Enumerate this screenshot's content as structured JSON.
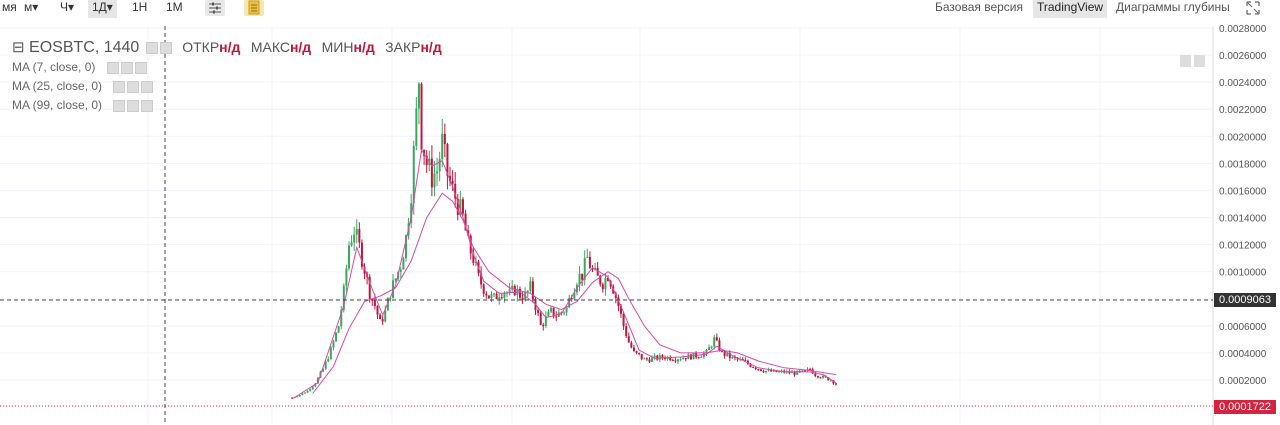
{
  "toolbar": {
    "items": [
      {
        "label": "мя"
      },
      {
        "label": "м▾"
      },
      {
        "label": "Ч▾"
      },
      {
        "label": "1Д▾"
      },
      {
        "label": "1Н"
      },
      {
        "label": "1М"
      }
    ],
    "settings_icon": "sliders-icon",
    "indicator_icon": "notes-icon",
    "right_items": [
      {
        "label": "Базовая версия"
      },
      {
        "label": "TradingView"
      },
      {
        "label": "Диаграммы глубины"
      }
    ],
    "fullscreen_icon": "expand-icon"
  },
  "legend": {
    "symbol": "EOSBTC, 1440",
    "open_label": "ОТКР",
    "high_label": "МАКС",
    "low_label": "МИН",
    "close_label": "ЗАКР",
    "na": "н/д",
    "ma": [
      {
        "label": "MA (7, close, 0)"
      },
      {
        "label": "MA (25, close, 0)"
      },
      {
        "label": "MA (99, close, 0)"
      }
    ]
  },
  "colors": {
    "up": "#3aa75d",
    "down": "#c0163b",
    "ma": "#d64ba6",
    "crosshair": "#444444",
    "tag_dark": "#333333",
    "tag_red": "#d4233f"
  },
  "chart_data": {
    "type": "candlestick",
    "y_ticks": [
      "0.0028000",
      "0.0026000",
      "0.0024000",
      "0.0022000",
      "0.0020000",
      "0.0018000",
      "0.0016000",
      "0.0014000",
      "0.0012000",
      "0.0010000",
      "0.0008000",
      "0.0006000",
      "0.0004000",
      "0.0002000"
    ],
    "ylim": [
      0.00014,
      0.0028
    ],
    "crosshair_price": "0.0009063",
    "last_price": "0.0001722",
    "close_path": [
      [
        0,
        7e-05
      ],
      [
        3,
        9e-05
      ],
      [
        6,
        0.00012
      ],
      [
        9,
        0.00018
      ],
      [
        12,
        0.00028
      ],
      [
        15,
        0.00042
      ],
      [
        18,
        0.0006
      ],
      [
        20,
        0.00085
      ],
      [
        22,
        0.0012
      ],
      [
        24,
        0.00131
      ],
      [
        26,
        0.00118
      ],
      [
        28,
        0.00102
      ],
      [
        30,
        0.00085
      ],
      [
        32,
        0.00075
      ],
      [
        34,
        0.00062
      ],
      [
        36,
        0.0007
      ],
      [
        38,
        0.00085
      ],
      [
        40,
        0.00095
      ],
      [
        42,
        0.00105
      ],
      [
        44,
        0.00125
      ],
      [
        46,
        0.0016
      ],
      [
        48,
        0.00215
      ],
      [
        49,
        0.00243
      ],
      [
        50,
        0.002
      ],
      [
        52,
        0.0018
      ],
      [
        54,
        0.0017
      ],
      [
        56,
        0.00175
      ],
      [
        58,
        0.00195
      ],
      [
        60,
        0.00172
      ],
      [
        62,
        0.0016
      ],
      [
        64,
        0.0015
      ],
      [
        66,
        0.0014
      ],
      [
        68,
        0.0012
      ],
      [
        70,
        0.0011
      ],
      [
        72,
        0.00095
      ],
      [
        74,
        0.00088
      ],
      [
        76,
        0.00082
      ],
      [
        78,
        0.0008
      ],
      [
        80,
        0.00085
      ],
      [
        82,
        0.00086
      ],
      [
        84,
        0.00083
      ],
      [
        86,
        0.00087
      ],
      [
        88,
        0.00083
      ],
      [
        90,
        0.00082
      ],
      [
        92,
        0.00088
      ],
      [
        94,
        0.00075
      ],
      [
        96,
        0.0006
      ],
      [
        98,
        0.00065
      ],
      [
        100,
        0.0007
      ],
      [
        102,
        0.00068
      ],
      [
        104,
        0.0007
      ],
      [
        106,
        0.00073
      ],
      [
        108,
        0.00085
      ],
      [
        110,
        0.00095
      ],
      [
        112,
        0.00098
      ],
      [
        114,
        0.0011
      ],
      [
        116,
        0.001
      ],
      [
        118,
        0.00095
      ],
      [
        120,
        0.00092
      ],
      [
        122,
        0.00098
      ],
      [
        124,
        0.00088
      ],
      [
        126,
        0.00075
      ],
      [
        128,
        0.0006
      ],
      [
        130,
        0.00048
      ],
      [
        132,
        0.0004
      ],
      [
        134,
        0.00038
      ],
      [
        136,
        0.00035
      ],
      [
        140,
        0.00036
      ],
      [
        144,
        0.00037
      ],
      [
        148,
        0.00036
      ],
      [
        152,
        0.00037
      ],
      [
        156,
        0.00038
      ],
      [
        160,
        0.0004
      ],
      [
        163,
        0.0005
      ],
      [
        166,
        0.0004
      ],
      [
        170,
        0.00036
      ],
      [
        174,
        0.00034
      ],
      [
        178,
        0.0003
      ],
      [
        182,
        0.00027
      ],
      [
        186,
        0.00026
      ],
      [
        190,
        0.00026
      ],
      [
        194,
        0.00025
      ],
      [
        198,
        0.00026
      ],
      [
        200,
        0.00028
      ],
      [
        202,
        0.00024
      ],
      [
        205,
        0.00022
      ],
      [
        208,
        0.0002
      ],
      [
        210,
        0.00017
      ]
    ],
    "ma7_path": [
      [
        0,
        6e-05
      ],
      [
        10,
        0.00018
      ],
      [
        20,
        0.00075
      ],
      [
        25,
        0.00118
      ],
      [
        30,
        0.00092
      ],
      [
        35,
        0.00068
      ],
      [
        40,
        0.0009
      ],
      [
        46,
        0.0014
      ],
      [
        50,
        0.0019
      ],
      [
        54,
        0.00178
      ],
      [
        58,
        0.00182
      ],
      [
        62,
        0.00163
      ],
      [
        66,
        0.0014
      ],
      [
        70,
        0.00113
      ],
      [
        74,
        0.00093
      ],
      [
        80,
        0.00084
      ],
      [
        88,
        0.00085
      ],
      [
        94,
        0.00076
      ],
      [
        98,
        0.00066
      ],
      [
        104,
        0.00069
      ],
      [
        110,
        0.00088
      ],
      [
        116,
        0.00103
      ],
      [
        122,
        0.00096
      ],
      [
        128,
        0.0007
      ],
      [
        134,
        0.00042
      ],
      [
        140,
        0.00036
      ],
      [
        150,
        0.00037
      ],
      [
        160,
        0.00039
      ],
      [
        164,
        0.00045
      ],
      [
        170,
        0.00038
      ],
      [
        180,
        0.00029
      ],
      [
        190,
        0.00026
      ],
      [
        200,
        0.00026
      ],
      [
        205,
        0.00024
      ],
      [
        210,
        0.00018
      ]
    ],
    "ma25_path": [
      [
        8,
        0.0001
      ],
      [
        16,
        0.0003
      ],
      [
        22,
        0.00058
      ],
      [
        28,
        0.00078
      ],
      [
        34,
        0.00082
      ],
      [
        40,
        0.00088
      ],
      [
        46,
        0.00108
      ],
      [
        52,
        0.0014
      ],
      [
        58,
        0.00158
      ],
      [
        62,
        0.00152
      ],
      [
        66,
        0.00138
      ],
      [
        70,
        0.00118
      ],
      [
        76,
        0.001
      ],
      [
        84,
        0.00088
      ],
      [
        92,
        0.00084
      ],
      [
        98,
        0.00076
      ],
      [
        104,
        0.00072
      ],
      [
        110,
        0.00078
      ],
      [
        116,
        0.00092
      ],
      [
        122,
        0.001
      ],
      [
        126,
        0.00095
      ],
      [
        130,
        0.0008
      ],
      [
        136,
        0.0006
      ],
      [
        142,
        0.00046
      ],
      [
        150,
        0.0004
      ],
      [
        160,
        0.0004
      ],
      [
        166,
        0.00042
      ],
      [
        172,
        0.0004
      ],
      [
        180,
        0.00034
      ],
      [
        190,
        0.00029
      ],
      [
        200,
        0.00027
      ],
      [
        210,
        0.00024
      ]
    ]
  }
}
